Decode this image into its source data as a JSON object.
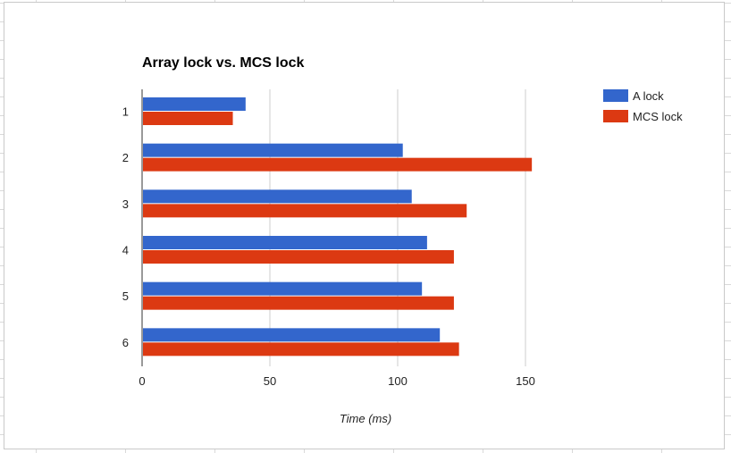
{
  "chart_data": {
    "type": "bar",
    "orientation": "horizontal",
    "title": "Array lock vs. MCS lock",
    "categories": [
      "1",
      "2",
      "3",
      "4",
      "5",
      "6"
    ],
    "series": [
      {
        "name": "A lock",
        "color": "#3366cc",
        "values": [
          40.5,
          102,
          105.5,
          111.5,
          109.5,
          116.5
        ]
      },
      {
        "name": "MCS lock",
        "color": "#dc3912",
        "values": [
          35.5,
          152.5,
          127,
          122,
          122,
          124
        ]
      }
    ],
    "xlabel": "Time (ms)",
    "ylabel": "",
    "xlim": [
      0,
      175
    ],
    "xticks": [
      0,
      50,
      100,
      150
    ],
    "grid": true,
    "legend": "right"
  }
}
